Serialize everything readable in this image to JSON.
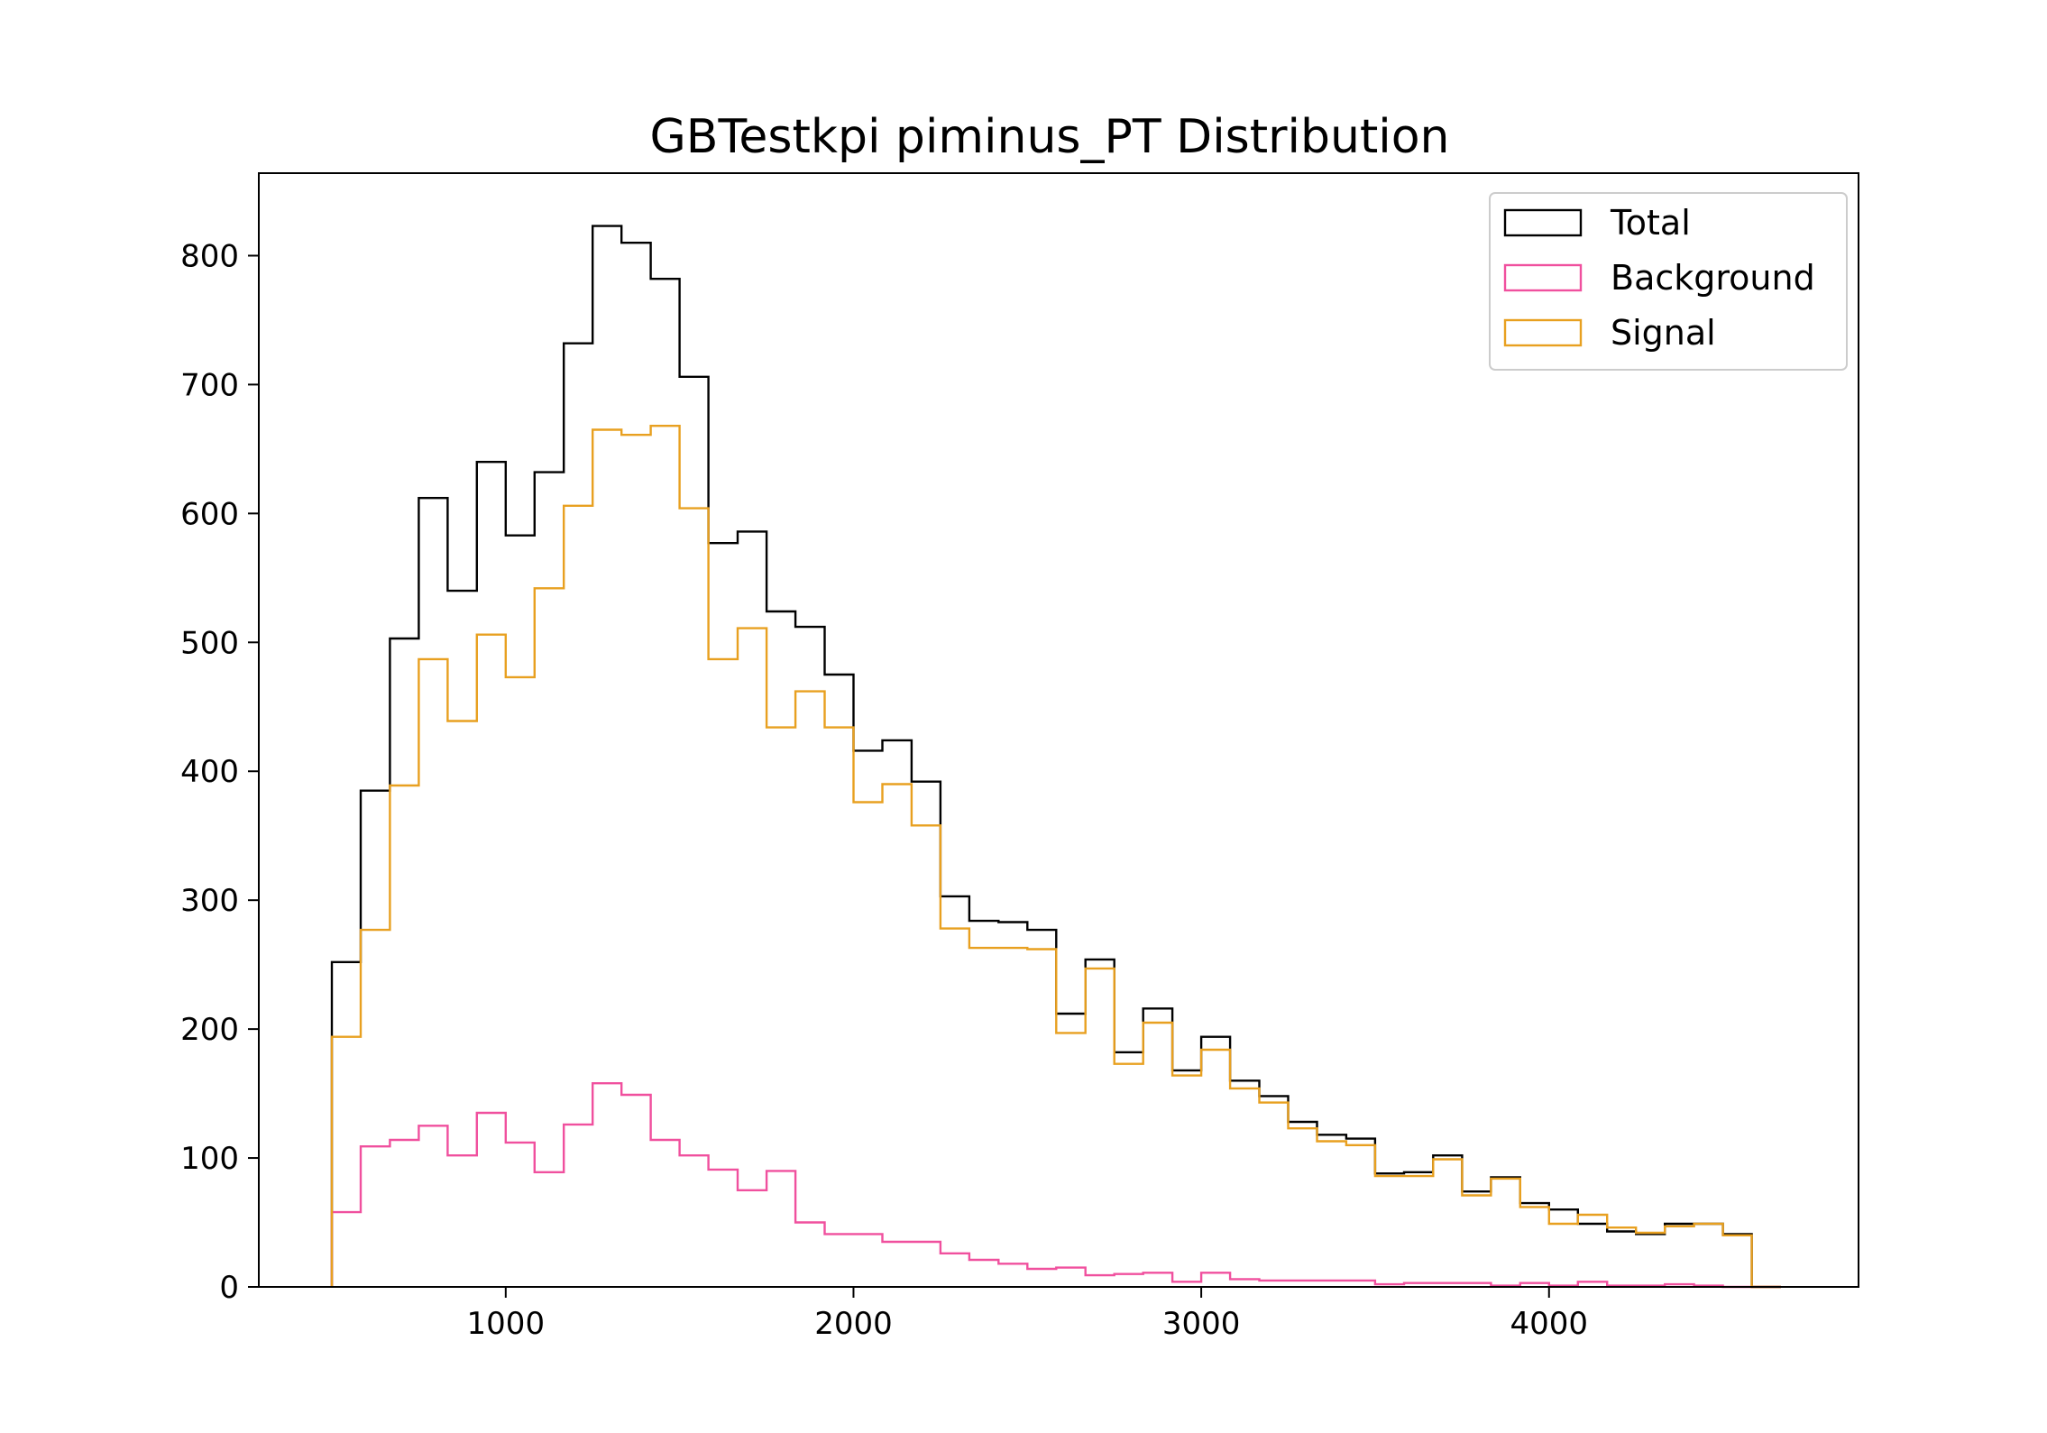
{
  "chart_data": {
    "type": "histogram",
    "title": "GBTestkpi piminus_PT Distribution",
    "xlabel": "",
    "ylabel": "",
    "xlim": [
      290,
      4890
    ],
    "ylim": [
      0,
      864
    ],
    "xticks": [
      1000,
      2000,
      3000,
      4000
    ],
    "yticks": [
      0,
      100,
      200,
      300,
      400,
      500,
      600,
      700,
      800
    ],
    "bin_edges": [
      500,
      583,
      667,
      750,
      833,
      917,
      1000,
      1083,
      1167,
      1250,
      1333,
      1417,
      1500,
      1583,
      1667,
      1750,
      1833,
      1917,
      2000,
      2083,
      2167,
      2250,
      2333,
      2417,
      2500,
      2583,
      2667,
      2750,
      2833,
      2917,
      3000,
      3083,
      3167,
      3250,
      3333,
      3417,
      3500,
      3583,
      3667,
      3750,
      3833,
      3917,
      4000,
      4083,
      4167,
      4250,
      4333,
      4417,
      4500,
      4583,
      4667
    ],
    "legend_position": "upper right",
    "grid": false,
    "series": [
      {
        "name": "Total",
        "color": "#000000",
        "values": [
          252,
          385,
          503,
          612,
          540,
          640,
          583,
          632,
          732,
          823,
          810,
          782,
          706,
          577,
          586,
          524,
          512,
          475,
          416,
          424,
          392,
          303,
          284,
          283,
          277,
          212,
          254,
          182,
          216,
          168,
          194,
          160,
          148,
          128,
          118,
          115,
          88,
          89,
          102,
          74,
          85,
          65,
          60,
          49,
          43,
          41,
          49,
          49,
          41,
          0
        ]
      },
      {
        "name": "Background",
        "color": "#f0509e",
        "values": [
          58,
          109,
          114,
          125,
          102,
          135,
          112,
          89,
          126,
          158,
          149,
          114,
          102,
          91,
          75,
          90,
          50,
          41,
          41,
          35,
          35,
          26,
          21,
          18,
          14,
          15,
          9,
          10,
          11,
          4,
          11,
          6,
          5,
          5,
          5,
          5,
          2,
          3,
          3,
          3,
          1,
          3,
          1,
          4,
          1,
          1,
          2,
          1,
          0,
          0
        ]
      },
      {
        "name": "Signal",
        "color": "#e8a020",
        "values": [
          194,
          277,
          389,
          487,
          439,
          506,
          473,
          542,
          606,
          665,
          661,
          668,
          604,
          487,
          511,
          434,
          462,
          434,
          376,
          390,
          358,
          278,
          263,
          263,
          262,
          197,
          247,
          173,
          205,
          164,
          184,
          154,
          143,
          123,
          113,
          110,
          86,
          86,
          99,
          71,
          84,
          62,
          49,
          56,
          46,
          42,
          47,
          49,
          40,
          0
        ]
      }
    ]
  }
}
